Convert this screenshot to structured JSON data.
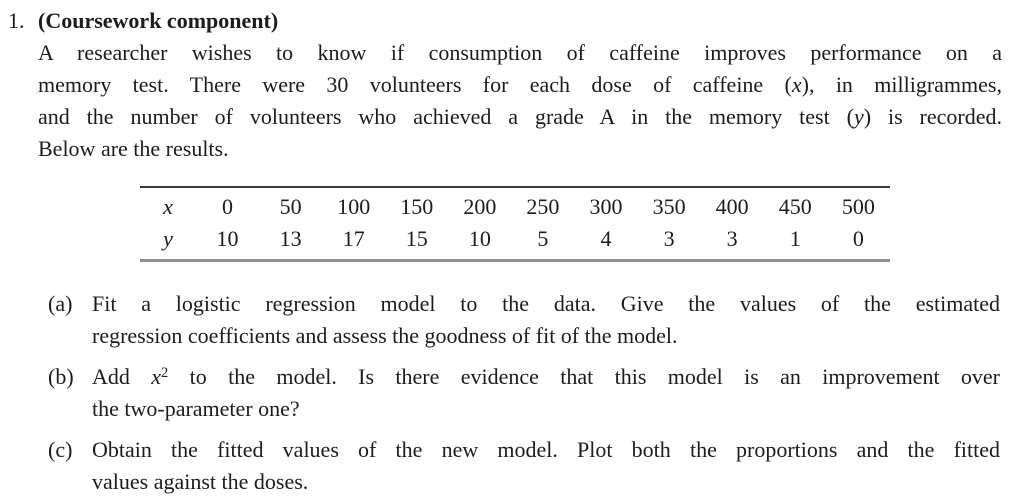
{
  "question": {
    "number": "1.",
    "heading": "(Coursework component)",
    "intro_lines": [
      {
        "justify": true,
        "segments": [
          {
            "t": "A researcher wishes to know if consumption of caffeine improves performance on a"
          }
        ]
      },
      {
        "justify": true,
        "segments": [
          {
            "t": "memory test. There were 30 volunteers for each dose of caffeine ("
          },
          {
            "t": "x",
            "s": "math"
          },
          {
            "t": "), in milligrammes,"
          }
        ]
      },
      {
        "justify": true,
        "segments": [
          {
            "t": "and the number of volunteers who achieved a grade A in the memory test ("
          },
          {
            "t": "y",
            "s": "math"
          },
          {
            "t": ") is recorded."
          }
        ]
      },
      {
        "justify": false,
        "segments": [
          {
            "t": "Below are the results."
          }
        ]
      }
    ]
  },
  "table": {
    "row_labels": {
      "x": "x",
      "y": "y"
    },
    "x_values": [
      "0",
      "50",
      "100",
      "150",
      "200",
      "250",
      "300",
      "350",
      "400",
      "450",
      "500"
    ],
    "y_values": [
      "10",
      "13",
      "17",
      "15",
      "10",
      "5",
      "4",
      "3",
      "3",
      "1",
      "0"
    ]
  },
  "parts": [
    {
      "label": "(a)",
      "lines": [
        {
          "justify": true,
          "segments": [
            {
              "t": "Fit a logistic regression model to the data.  Give the values of the estimated"
            }
          ]
        },
        {
          "justify": false,
          "segments": [
            {
              "t": "regression coefficients and assess the goodness of fit of the model."
            }
          ]
        }
      ]
    },
    {
      "label": "(b)",
      "lines": [
        {
          "justify": true,
          "segments": [
            {
              "t": "Add "
            },
            {
              "t": "x",
              "s": "math"
            },
            {
              "t": "2",
              "s": "sup"
            },
            {
              "t": " to the model.  Is there evidence that this model is an improvement over"
            }
          ]
        },
        {
          "justify": false,
          "segments": [
            {
              "t": "the two-parameter one?"
            }
          ]
        }
      ]
    },
    {
      "label": "(c)",
      "lines": [
        {
          "justify": true,
          "segments": [
            {
              "t": "Obtain the fitted values of the new model. Plot both the proportions and the fitted"
            }
          ]
        },
        {
          "justify": false,
          "segments": [
            {
              "t": "values against the doses."
            }
          ]
        }
      ]
    }
  ]
}
